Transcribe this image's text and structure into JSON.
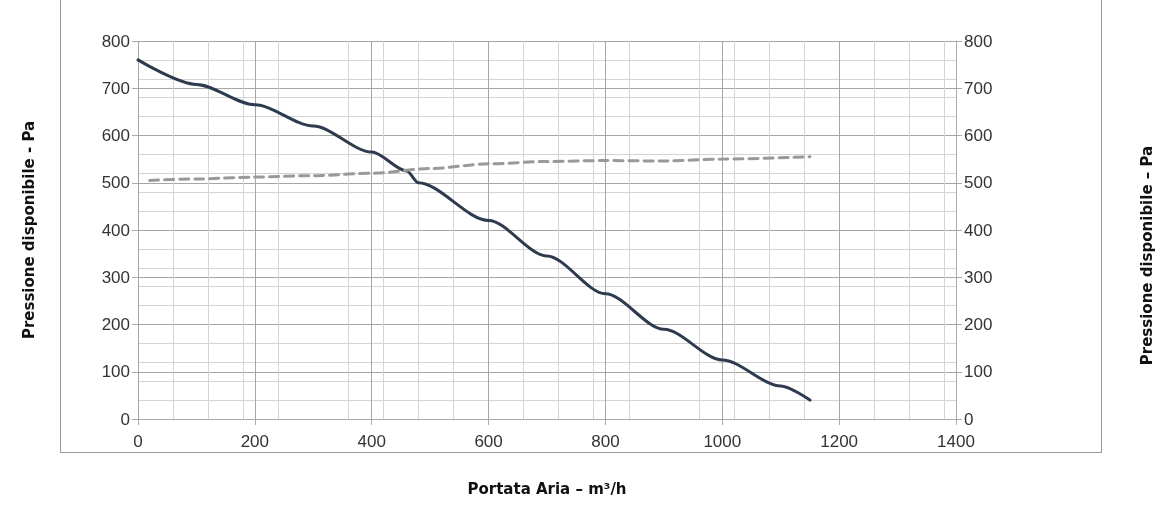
{
  "chart_data": {
    "type": "line",
    "xlabel": "Portata Aria – m³/h",
    "ylabel": "Pressione disponibile - Pa",
    "annotations": [
      "Pressione disponibile – Pa"
    ],
    "xlim": [
      0,
      1400
    ],
    "xticks": [
      0,
      200,
      400,
      600,
      800,
      1000,
      1200,
      1400
    ],
    "ylim": [
      0,
      800
    ],
    "yticks": [
      0,
      100,
      200,
      300,
      400,
      500,
      600,
      700,
      800
    ],
    "y2lim": [
      0,
      800
    ],
    "y2ticks": [
      0,
      100,
      200,
      300,
      400,
      500,
      600,
      700,
      800
    ],
    "grid": true,
    "marker": "none",
    "series": [
      {
        "color": "#2e3b4e",
        "line_style": "solid",
        "x": [
          0,
          100,
          200,
          300,
          400,
          460,
          480,
          600,
          700,
          800,
          900,
          1000,
          1100,
          1150
        ],
        "values": [
          760,
          708,
          665,
          620,
          565,
          525,
          500,
          420,
          345,
          265,
          190,
          125,
          70,
          40
        ]
      },
      {
        "color": "#999999",
        "line_style": "dashed",
        "x": [
          20,
          100,
          200,
          300,
          400,
          500,
          600,
          700,
          800,
          900,
          1000,
          1150
        ],
        "values": [
          505,
          508,
          512,
          515,
          520,
          530,
          540,
          545,
          547,
          546,
          550,
          555
        ]
      }
    ]
  }
}
